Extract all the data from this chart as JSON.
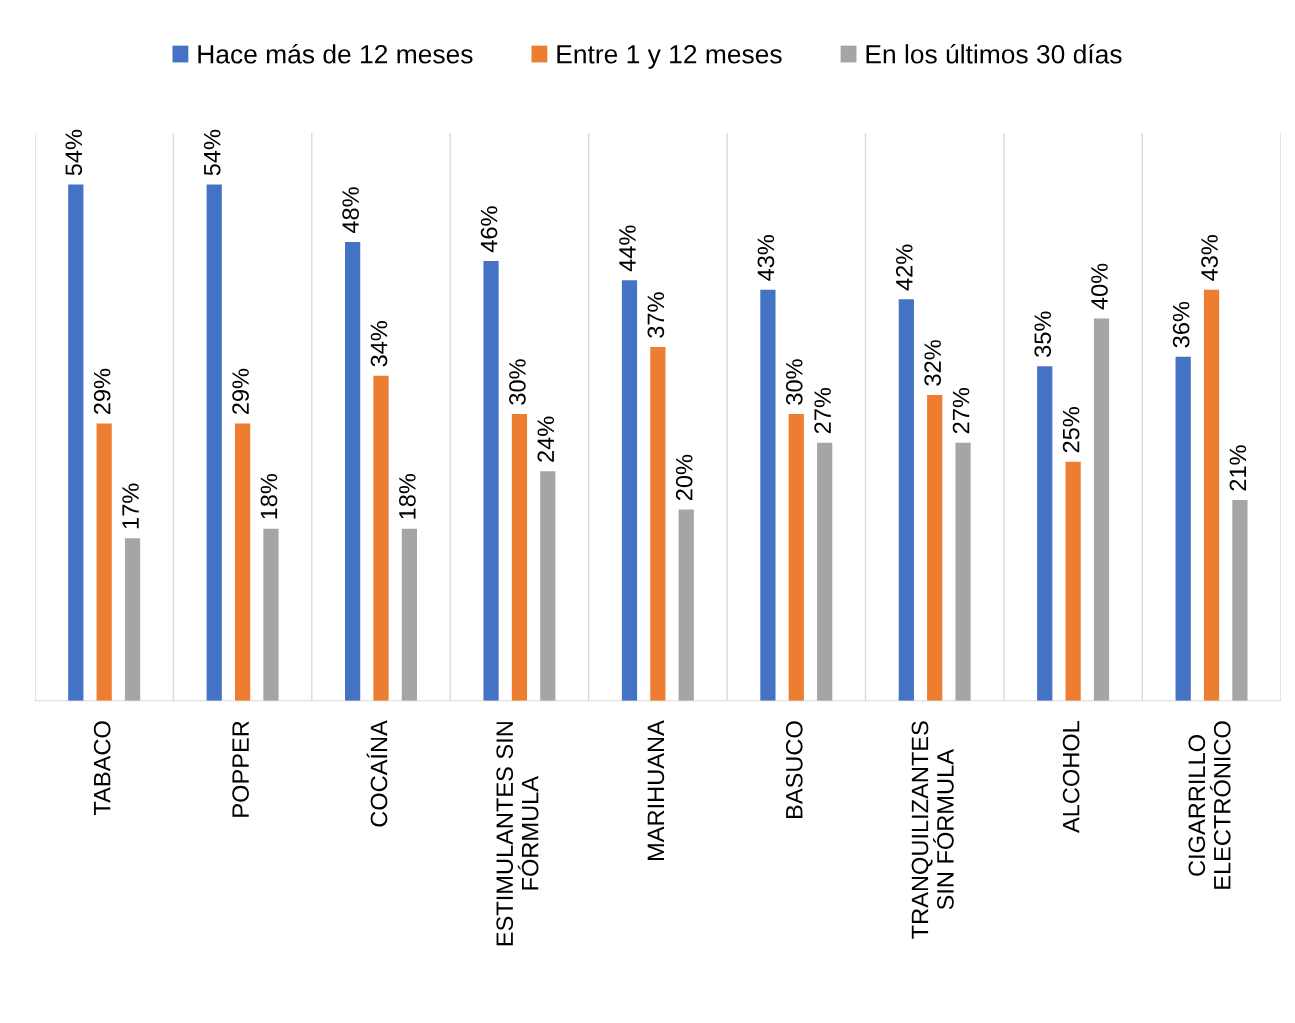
{
  "chart_data": {
    "type": "bar",
    "categories": [
      "TABACO",
      "POPPER",
      "COCAÍNA",
      "ESTIMULANTES SIN\nFÓRMULA",
      "MARIHUANA",
      "BASUCO",
      "TRANQUILIZANTES\nSIN FÓRMULA",
      "ALCOHOL",
      "CIGARRILLO\nELECTRÓNICO"
    ],
    "series": [
      {
        "name": "Hace más de 12 meses",
        "color": "#4472c4",
        "values": [
          54,
          54,
          48,
          46,
          44,
          43,
          42,
          35,
          36
        ],
        "value_labels": [
          "54%",
          "54%",
          "48%",
          "46%",
          "44%",
          "43%",
          "42%",
          "35%",
          "36%"
        ]
      },
      {
        "name": "Entre 1 y 12 meses",
        "color": "#ed7d31",
        "values": [
          29,
          29,
          34,
          30,
          37,
          30,
          32,
          25,
          43
        ],
        "value_labels": [
          "29%",
          "29%",
          "34%",
          "30%",
          "37%",
          "30%",
          "32%",
          "25%",
          "43%"
        ]
      },
      {
        "name": "En los últimos 30 días",
        "color": "#a5a5a5",
        "values": [
          17,
          18,
          18,
          24,
          20,
          27,
          27,
          40,
          21
        ],
        "value_labels": [
          "17%",
          "18%",
          "18%",
          "24%",
          "20%",
          "27%",
          "27%",
          "40%",
          "21%"
        ]
      }
    ],
    "legend": "top",
    "grid": "x"
  }
}
